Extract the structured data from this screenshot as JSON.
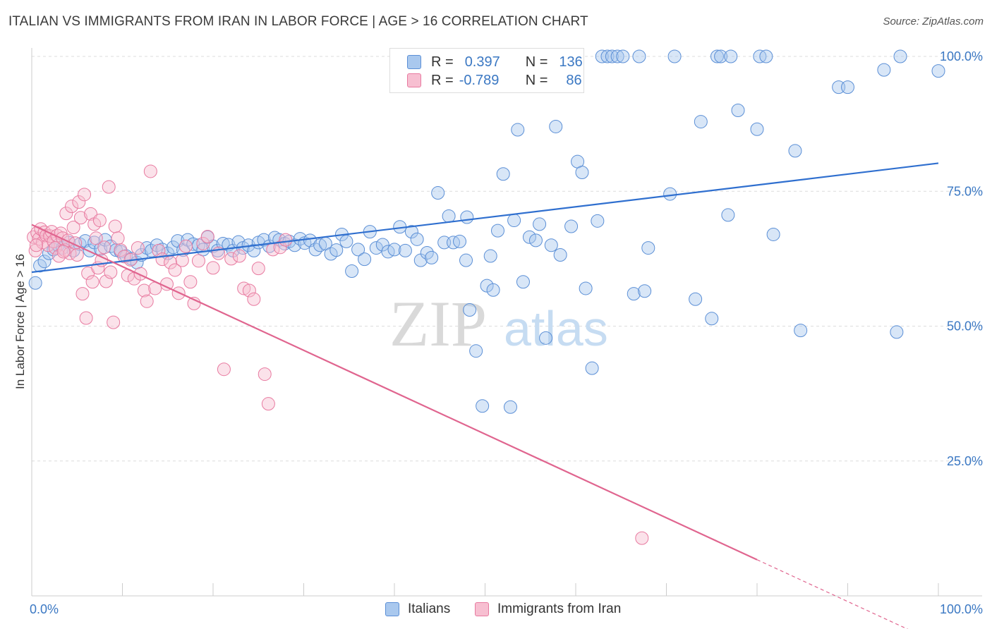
{
  "title": "ITALIAN VS IMMIGRANTS FROM IRAN IN LABOR FORCE | AGE > 16 CORRELATION CHART",
  "source": "Source: ZipAtlas.com",
  "watermark": {
    "zip": "ZIP",
    "atlas": "atlas"
  },
  "legend": {
    "rows": [
      {
        "r_label": "R =",
        "r_value": "0.397",
        "n_label": "N =",
        "n_value": "136",
        "color": "#a9c8ee",
        "border": "#5b8fd6"
      },
      {
        "r_label": "R =",
        "r_value": "-0.789",
        "n_label": "N =",
        "n_value": "86",
        "color": "#f7bfd1",
        "border": "#e87aa0"
      }
    ]
  },
  "bottom_legend": [
    {
      "label": "Italians",
      "color": "#a9c8ee",
      "border": "#5b8fd6"
    },
    {
      "label": "Immigrants from Iran",
      "color": "#f7bfd1",
      "border": "#e87aa0"
    }
  ],
  "chart_data": {
    "type": "scatter",
    "title": "ITALIAN VS IMMIGRANTS FROM IRAN IN LABOR FORCE | AGE > 16 CORRELATION CHART",
    "xlabel": "",
    "ylabel": "In Labor Force | Age > 16",
    "xlim": [
      0,
      100
    ],
    "ylim": [
      0,
      102
    ],
    "x_tick_labels": [
      "0.0%",
      "100.0%"
    ],
    "y_ticks": [
      25,
      50,
      75,
      100
    ],
    "y_tick_labels": [
      "25.0%",
      "50.0%",
      "75.0%",
      "100.0%"
    ],
    "grid": true,
    "series": [
      {
        "name": "Italians",
        "color": "#5b8fd6",
        "fill": "rgba(169,200,238,0.45)",
        "line_color": "#2f6fcf",
        "trend": {
          "x0": 0,
          "y0": 60.0,
          "x1": 100,
          "y1": 80.2
        },
        "points": [
          [
            0.4,
            58.0
          ],
          [
            0.9,
            61.2
          ],
          [
            1.4,
            62.0
          ],
          [
            1.9,
            63.5
          ],
          [
            2.4,
            64.2
          ],
          [
            2.9,
            65.0
          ],
          [
            3.4,
            64.5
          ],
          [
            4.1,
            65.5
          ],
          [
            4.6,
            64.0
          ],
          [
            5.3,
            65.2
          ],
          [
            5.9,
            65.8
          ],
          [
            6.4,
            64.0
          ],
          [
            6.9,
            65.5
          ],
          [
            7.6,
            64.3
          ],
          [
            8.1,
            66.0
          ],
          [
            8.7,
            64.8
          ],
          [
            9.3,
            64.1
          ],
          [
            9.8,
            63.8
          ],
          [
            10.4,
            63.0
          ],
          [
            11.0,
            62.5
          ],
          [
            11.6,
            61.8
          ],
          [
            12.1,
            63.2
          ],
          [
            12.7,
            64.5
          ],
          [
            13.2,
            64.0
          ],
          [
            13.8,
            65.0
          ],
          [
            14.4,
            64.2
          ],
          [
            15.0,
            63.5
          ],
          [
            15.6,
            64.6
          ],
          [
            16.1,
            65.8
          ],
          [
            16.7,
            64.1
          ],
          [
            17.2,
            66.0
          ],
          [
            17.8,
            65.2
          ],
          [
            18.4,
            65.0
          ],
          [
            18.9,
            64.2
          ],
          [
            19.4,
            66.5
          ],
          [
            20.0,
            64.8
          ],
          [
            20.5,
            64.0
          ],
          [
            21.1,
            65.3
          ],
          [
            21.7,
            65.1
          ],
          [
            22.2,
            64.0
          ],
          [
            22.8,
            65.6
          ],
          [
            23.3,
            64.5
          ],
          [
            23.9,
            65.0
          ],
          [
            24.5,
            64.0
          ],
          [
            25.0,
            65.5
          ],
          [
            25.6,
            66.0
          ],
          [
            26.2,
            64.8
          ],
          [
            26.8,
            66.4
          ],
          [
            27.3,
            66.0
          ],
          [
            27.9,
            65.3
          ],
          [
            28.4,
            65.7
          ],
          [
            29.0,
            65.0
          ],
          [
            29.6,
            66.2
          ],
          [
            30.1,
            65.4
          ],
          [
            30.7,
            65.9
          ],
          [
            31.3,
            64.2
          ],
          [
            31.8,
            65.0
          ],
          [
            32.4,
            65.3
          ],
          [
            33.0,
            63.4
          ],
          [
            33.6,
            64.1
          ],
          [
            34.2,
            67.0
          ],
          [
            34.7,
            65.7
          ],
          [
            35.3,
            60.2
          ],
          [
            36.0,
            64.2
          ],
          [
            36.7,
            62.4
          ],
          [
            37.3,
            67.5
          ],
          [
            38.0,
            64.5
          ],
          [
            38.7,
            65.1
          ],
          [
            39.3,
            63.8
          ],
          [
            40.0,
            64.2
          ],
          [
            40.6,
            68.4
          ],
          [
            41.2,
            64.0
          ],
          [
            41.9,
            67.5
          ],
          [
            42.5,
            66.1
          ],
          [
            42.9,
            62.2
          ],
          [
            43.6,
            63.6
          ],
          [
            44.1,
            62.7
          ],
          [
            44.8,
            74.7
          ],
          [
            45.5,
            65.5
          ],
          [
            46.0,
            70.4
          ],
          [
            46.5,
            65.5
          ],
          [
            47.2,
            65.7
          ],
          [
            47.9,
            62.2
          ],
          [
            48.0,
            70.2
          ],
          [
            48.3,
            53.0
          ],
          [
            49.0,
            45.4
          ],
          [
            49.7,
            35.2
          ],
          [
            50.2,
            57.5
          ],
          [
            50.6,
            63.0
          ],
          [
            50.9,
            56.7
          ],
          [
            51.4,
            67.7
          ],
          [
            52.0,
            78.2
          ],
          [
            52.8,
            35.0
          ],
          [
            53.2,
            69.6
          ],
          [
            53.6,
            86.4
          ],
          [
            54.2,
            58.2
          ],
          [
            54.9,
            66.5
          ],
          [
            55.6,
            65.9
          ],
          [
            56.0,
            68.9
          ],
          [
            56.7,
            47.8
          ],
          [
            57.3,
            65.0
          ],
          [
            57.8,
            87.0
          ],
          [
            58.3,
            63.2
          ],
          [
            59.5,
            68.5
          ],
          [
            60.2,
            80.5
          ],
          [
            60.7,
            78.5
          ],
          [
            61.1,
            57.0
          ],
          [
            61.8,
            42.2
          ],
          [
            62.4,
            69.5
          ],
          [
            62.9,
            100.0
          ],
          [
            63.5,
            100.0
          ],
          [
            64.0,
            100.0
          ],
          [
            64.6,
            100.0
          ],
          [
            65.2,
            100.0
          ],
          [
            66.4,
            56.0
          ],
          [
            67.0,
            100.0
          ],
          [
            67.6,
            56.5
          ],
          [
            68.0,
            64.5
          ],
          [
            70.4,
            74.5
          ],
          [
            70.9,
            100.0
          ],
          [
            73.2,
            55.0
          ],
          [
            73.8,
            87.9
          ],
          [
            75.0,
            51.4
          ],
          [
            75.6,
            100.0
          ],
          [
            76.0,
            100.0
          ],
          [
            76.8,
            70.6
          ],
          [
            77.1,
            100.0
          ],
          [
            77.9,
            90.0
          ],
          [
            80.0,
            86.5
          ],
          [
            80.3,
            100.0
          ],
          [
            81.0,
            100.0
          ],
          [
            81.8,
            67.0
          ],
          [
            84.2,
            82.5
          ],
          [
            84.8,
            49.2
          ],
          [
            89.0,
            94.3
          ],
          [
            90.0,
            94.3
          ],
          [
            94.0,
            97.5
          ],
          [
            95.4,
            48.9
          ],
          [
            95.8,
            100.0
          ],
          [
            100.0,
            97.3
          ]
        ]
      },
      {
        "name": "Immigrants from Iran",
        "color": "#e87aa0",
        "fill": "rgba(247,191,209,0.45)",
        "line_color": "#e0658f",
        "trend": {
          "x0": 0,
          "y0": 68.8,
          "x1": 80,
          "y1": 6.7
        },
        "trend_dash_to": {
          "x": 100,
          "y": -8.8
        },
        "points": [
          [
            0.2,
            66.5
          ],
          [
            0.4,
            64.0
          ],
          [
            0.6,
            67.3
          ],
          [
            0.8,
            66.2
          ],
          [
            1.0,
            68.0
          ],
          [
            1.2,
            65.5
          ],
          [
            1.4,
            67.4
          ],
          [
            1.6,
            66.8
          ],
          [
            1.8,
            65.0
          ],
          [
            2.0,
            66.7
          ],
          [
            2.2,
            67.5
          ],
          [
            2.4,
            65.7
          ],
          [
            2.6,
            64.5
          ],
          [
            2.8,
            66.8
          ],
          [
            3.0,
            63.0
          ],
          [
            3.2,
            67.2
          ],
          [
            3.4,
            66.3
          ],
          [
            3.6,
            64.1
          ],
          [
            3.8,
            70.9
          ],
          [
            4.0,
            65.9
          ],
          [
            4.2,
            63.5
          ],
          [
            4.4,
            72.2
          ],
          [
            4.6,
            68.3
          ],
          [
            4.8,
            65.4
          ],
          [
            5.0,
            63.2
          ],
          [
            5.2,
            73.0
          ],
          [
            5.4,
            70.1
          ],
          [
            5.6,
            56.0
          ],
          [
            5.8,
            74.4
          ],
          [
            6.0,
            51.5
          ],
          [
            6.2,
            59.8
          ],
          [
            6.5,
            70.8
          ],
          [
            6.7,
            58.2
          ],
          [
            6.9,
            68.9
          ],
          [
            7.1,
            66.3
          ],
          [
            7.3,
            60.8
          ],
          [
            7.5,
            69.6
          ],
          [
            7.7,
            62.2
          ],
          [
            8.0,
            64.6
          ],
          [
            8.2,
            58.3
          ],
          [
            8.5,
            75.8
          ],
          [
            8.7,
            60.0
          ],
          [
            9.0,
            50.7
          ],
          [
            9.2,
            68.5
          ],
          [
            9.5,
            66.3
          ],
          [
            9.8,
            64.1
          ],
          [
            10.2,
            62.9
          ],
          [
            10.6,
            59.4
          ],
          [
            10.9,
            62.3
          ],
          [
            11.3,
            58.8
          ],
          [
            11.7,
            64.5
          ],
          [
            12.0,
            59.7
          ],
          [
            12.4,
            56.6
          ],
          [
            12.7,
            54.6
          ],
          [
            13.1,
            78.7
          ],
          [
            13.6,
            57.0
          ],
          [
            14.0,
            64.0
          ],
          [
            14.4,
            62.4
          ],
          [
            14.9,
            57.8
          ],
          [
            15.3,
            61.8
          ],
          [
            15.8,
            60.4
          ],
          [
            16.2,
            56.1
          ],
          [
            16.6,
            62.2
          ],
          [
            17.0,
            64.8
          ],
          [
            17.5,
            58.2
          ],
          [
            17.9,
            54.2
          ],
          [
            18.4,
            62.1
          ],
          [
            18.9,
            65.3
          ],
          [
            19.4,
            66.6
          ],
          [
            20.0,
            60.8
          ],
          [
            20.6,
            63.5
          ],
          [
            21.2,
            42.0
          ],
          [
            22.0,
            62.5
          ],
          [
            22.9,
            63.0
          ],
          [
            23.4,
            57.0
          ],
          [
            24.0,
            56.6
          ],
          [
            24.5,
            55.0
          ],
          [
            25.0,
            60.7
          ],
          [
            25.7,
            41.1
          ],
          [
            26.1,
            35.6
          ],
          [
            26.6,
            64.2
          ],
          [
            27.4,
            64.6
          ],
          [
            28.0,
            66.0
          ],
          [
            0.5,
            65.0
          ],
          [
            67.3,
            10.7
          ],
          [
            3.5,
            63.8
          ]
        ]
      }
    ]
  }
}
